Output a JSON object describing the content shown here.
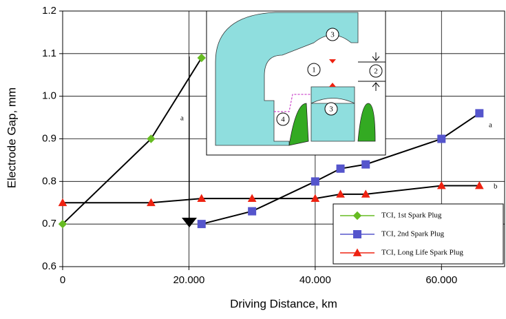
{
  "chart_data": {
    "type": "line",
    "x_label": "Driving Distance, km",
    "y_label": "Electrode Gap, mm",
    "xlim": [
      0,
      70000
    ],
    "ylim": [
      0.6,
      1.2
    ],
    "xticks": [
      0,
      {
        "value": 20000,
        "label": "20.000"
      },
      {
        "value": 40000,
        "label": "40.000"
      },
      {
        "value": 60000,
        "label": "60.000"
      }
    ],
    "yticks": [
      0.6,
      0.7,
      0.8,
      0.9,
      {
        "value": 1,
        "label": "1.0"
      },
      1.1,
      1.2
    ],
    "grid": true,
    "legend": "lower right",
    "series": [
      {
        "name": "TCI, 1st  Spark Plug",
        "color": "#66bb22",
        "marker": "diamond",
        "x": [
          0,
          14000,
          22000
        ],
        "values": [
          0.7,
          0.9,
          1.09
        ]
      },
      {
        "name": "TCI, 2nd  Spark Plug",
        "color": "#5555cc",
        "marker": "square",
        "x": [
          22000,
          30000,
          40000,
          44000,
          48000,
          60000,
          66000
        ],
        "values": [
          0.7,
          0.73,
          0.8,
          0.83,
          0.84,
          0.9,
          0.96
        ]
      },
      {
        "name": "TCI, Long Life Spark Plug",
        "color": "#ee2211",
        "marker": "triangle",
        "x": [
          0,
          14000,
          22000,
          30000,
          40000,
          44000,
          48000,
          60000,
          66000
        ],
        "values": [
          0.75,
          0.75,
          0.76,
          0.76,
          0.76,
          0.77,
          0.77,
          0.79,
          0.79
        ]
      }
    ],
    "annotations": [
      "a",
      "a",
      "b"
    ],
    "inset_labels": [
      "3",
      "1",
      "2",
      "3",
      "4"
    ]
  }
}
